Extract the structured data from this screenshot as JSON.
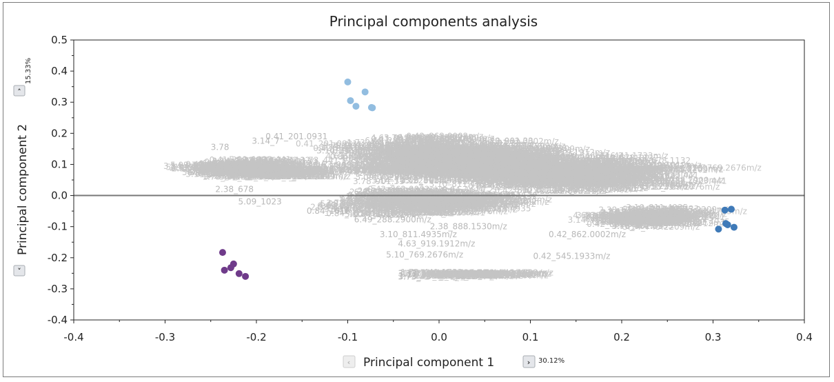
{
  "chart_data": {
    "type": "scatter",
    "title": "Principal components analysis",
    "xlabel": "Principal component 1",
    "ylabel": "Principal component 2",
    "x_variance": "30.12%",
    "y_variance": "15.33%",
    "xlim": [
      -0.4,
      0.4
    ],
    "ylim": [
      -0.4,
      0.5
    ],
    "x_ticks": [
      "-0.4",
      "-0.3",
      "-0.2",
      "-0.1",
      "0.0",
      "0.1",
      "0.2",
      "0.3",
      "0.4"
    ],
    "y_ticks": [
      "0.5",
      "0.4",
      "0.3",
      "0.2",
      "0.1",
      "0.0",
      "-0.1",
      "-0.2",
      "-0.3",
      "-0.4"
    ],
    "zero_line_y": 0.0,
    "grid": false,
    "series": [
      {
        "color": "#92bde0",
        "points": [
          [
            -0.1,
            0.365
          ],
          [
            -0.097,
            0.305
          ],
          [
            -0.091,
            0.287
          ],
          [
            -0.081,
            0.333
          ],
          [
            -0.074,
            0.283
          ],
          [
            -0.073,
            0.282
          ]
        ]
      },
      {
        "color": "#3f7ab8",
        "points": [
          [
            0.306,
            -0.108
          ],
          [
            0.313,
            -0.047
          ],
          [
            0.314,
            -0.09
          ],
          [
            0.316,
            -0.094
          ],
          [
            0.32,
            -0.044
          ],
          [
            0.323,
            -0.102
          ]
        ]
      },
      {
        "color": "#6f3b8a",
        "points": [
          [
            -0.237,
            -0.183
          ],
          [
            -0.235,
            -0.24
          ],
          [
            -0.228,
            -0.232
          ],
          [
            -0.225,
            -0.22
          ],
          [
            -0.219,
            -0.251
          ],
          [
            -0.212,
            -0.26
          ]
        ]
      }
    ],
    "loading_labels": {
      "color": "#c4c4c4",
      "readable": [
        {
          "text": "0.41_201.0931",
          "x": -0.19,
          "y": 0.19
        },
        {
          "text": "3.14_7",
          "x": -0.205,
          "y": 0.175
        },
        {
          "text": "3.78",
          "x": -0.25,
          "y": 0.155
        },
        {
          "text": "2.38_678",
          "x": -0.245,
          "y": 0.02
        },
        {
          "text": "5.09_1023",
          "x": -0.22,
          "y": -0.02
        },
        {
          "text": "0.84_1616",
          "x": -0.145,
          "y": -0.05
        },
        {
          "text": "6.49_288.2900m/z",
          "x": -0.093,
          "y": -0.078
        },
        {
          "text": "2.38_888.1530m/z",
          "x": -0.01,
          "y": -0.1
        },
        {
          "text": "3.10_811.4935m/z",
          "x": -0.065,
          "y": -0.125
        },
        {
          "text": "4.63_919.1912m/z",
          "x": -0.045,
          "y": -0.155
        },
        {
          "text": "5.10_769.2676m/z",
          "x": -0.058,
          "y": -0.19
        },
        {
          "text": "0.42_862.0002m/z",
          "x": 0.12,
          "y": -0.125
        },
        {
          "text": "0.42_545.1933m/z",
          "x": 0.103,
          "y": -0.195
        },
        {
          "text": "3.33_",
          "x": -0.045,
          "y": -0.25
        },
        {
          "text": "3.73_",
          "x": -0.045,
          "y": -0.262
        }
      ]
    }
  },
  "controls": {
    "x_prev_glyph": "‹",
    "x_next_glyph": "›",
    "y_up_glyph": "˄",
    "y_down_glyph": "˅"
  }
}
